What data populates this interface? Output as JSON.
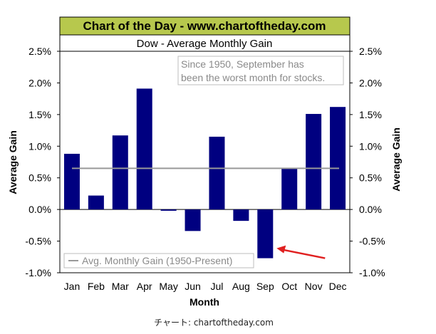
{
  "chart_data": {
    "type": "bar",
    "banner": "Chart of the Day - www.chartoftheday.com",
    "title": "Dow - Average Monthly Gain",
    "categories": [
      "Jan",
      "Feb",
      "Mar",
      "Apr",
      "May",
      "Jun",
      "Jul",
      "Aug",
      "Sep",
      "Oct",
      "Nov",
      "Dec"
    ],
    "values": [
      0.88,
      0.22,
      1.17,
      1.91,
      -0.02,
      -0.34,
      1.15,
      -0.18,
      -0.77,
      0.65,
      1.51,
      1.62
    ],
    "average_line": {
      "value": 0.65,
      "label": "Avg. Monthly Gain (1950-Present)"
    },
    "xlabel": "Month",
    "ylabel": "Average Gain",
    "ylabel_right": "Average Gain",
    "ylim": [
      -1.0,
      2.5
    ],
    "yticks": [
      "2.5%",
      "2.0%",
      "1.5%",
      "1.0%",
      "0.5%",
      "0.0%",
      "-0.5%",
      "-1.0%"
    ],
    "ytick_values": [
      2.5,
      2.0,
      1.5,
      1.0,
      0.5,
      0.0,
      -0.5,
      -1.0
    ],
    "annotation": [
      "Since 1950, September has",
      "been the worst month for stocks."
    ],
    "arrow_target": "Sep",
    "grid": false,
    "legend_position": "bottom-left"
  },
  "colors": {
    "bar": "#000080",
    "average_line": "#999999",
    "banner_bg": "#b7c84d",
    "arrow": "#e02020"
  },
  "footer": {
    "credit": "チャート: chartoftheday.com"
  }
}
